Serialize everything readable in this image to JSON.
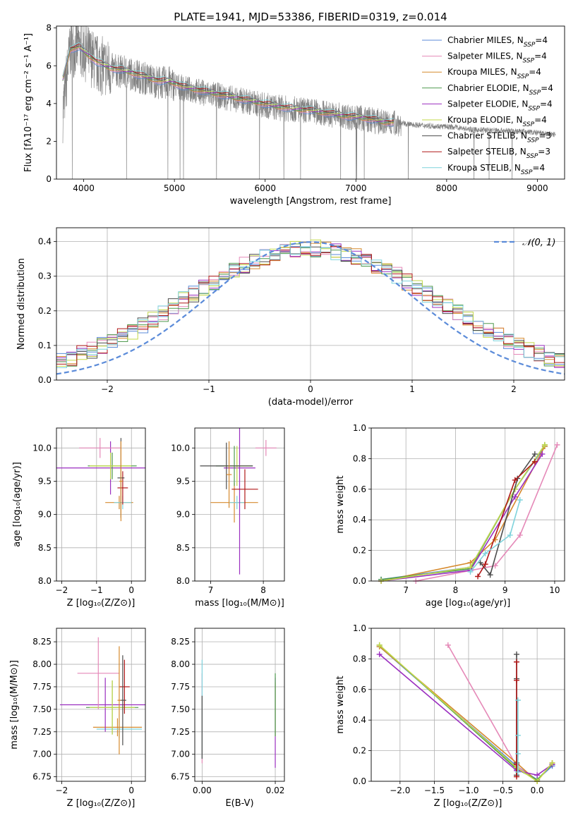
{
  "figure": {
    "title": "PLATE=1941, MJD=53386, FIBERID=0319, z=0.014"
  },
  "legend_entries": [
    {
      "label": "Chabrier MILES, N",
      "sub": "SSP",
      "suffix": "=4",
      "color": "#5b8bd9"
    },
    {
      "label": "Salpeter MILES, N",
      "sub": "SSP",
      "suffix": "=4",
      "color": "#e589b8"
    },
    {
      "label": "Kroupa MILES, N",
      "sub": "SSP",
      "suffix": "=4",
      "color": "#d68a2e"
    },
    {
      "label": "Chabrier ELODIE, N",
      "sub": "SSP",
      "suffix": "=4",
      "color": "#4f9a4f"
    },
    {
      "label": "Salpeter ELODIE, N",
      "sub": "SSP",
      "suffix": "=4",
      "color": "#9b2fc0"
    },
    {
      "label": "Kroupa ELODIE, N",
      "sub": "SSP",
      "suffix": "=4",
      "color": "#c3d94a"
    },
    {
      "label": "Chabrier STELIB, N",
      "sub": "SSP",
      "suffix": "=3",
      "color": "#4d4d4d"
    },
    {
      "label": "Salpeter STELIB, N",
      "sub": "SSP",
      "suffix": "=3",
      "color": "#b01818"
    },
    {
      "label": "Kroupa STELIB, N",
      "sub": "SSP",
      "suffix": "=4",
      "color": "#7fd3dc"
    }
  ],
  "chart_data": [
    {
      "id": "spectrum",
      "type": "line",
      "xlabel": "wavelength [Angstrom, rest frame]",
      "ylabel": "Flux [fλ10⁻¹⁷ erg cm⁻² s⁻¹ A⁻¹]",
      "xlim": [
        3700,
        9300
      ],
      "ylim": [
        0,
        8.1
      ],
      "xticks": [
        4000,
        5000,
        6000,
        7000,
        8000,
        9000
      ],
      "yticks": [
        0,
        2,
        4,
        6,
        8
      ],
      "observed": {
        "color": "#808080",
        "x": [
          3770,
          3850,
          3950,
          4050,
          4150,
          4300,
          4500,
          4700,
          4850,
          4950,
          5100,
          5300,
          5500,
          5700,
          5900,
          6100,
          6300,
          6500,
          6700,
          6900,
          7100,
          7300,
          7500,
          7700,
          7900,
          8100,
          8300,
          8500,
          8700,
          8900,
          9100,
          9200
        ],
        "y": [
          3.5,
          6.9,
          7.0,
          6.6,
          6.1,
          5.8,
          5.6,
          5.3,
          5.1,
          5.1,
          4.8,
          4.6,
          4.4,
          4.2,
          4.0,
          3.8,
          3.7,
          3.6,
          3.45,
          3.3,
          3.2,
          3.0,
          2.95,
          2.85,
          2.8,
          2.75,
          2.6,
          2.6,
          2.55,
          2.5,
          2.4,
          2.35
        ]
      },
      "models": {
        "x": [
          3770,
          3850,
          3950,
          4050,
          4150,
          4300,
          4500,
          4700,
          4850,
          4950,
          5100,
          5300,
          5500,
          5700,
          5900,
          6100,
          6300,
          6500,
          6700,
          6900,
          7100,
          7300,
          7420
        ],
        "y": [
          5.3,
          6.9,
          7.0,
          6.6,
          6.2,
          5.9,
          5.7,
          5.4,
          5.2,
          5.2,
          4.9,
          4.7,
          4.5,
          4.3,
          4.1,
          3.9,
          3.75,
          3.65,
          3.5,
          3.35,
          3.25,
          3.05,
          3.0
        ]
      }
    },
    {
      "id": "residuals",
      "type": "histogram",
      "xlabel": "(data-model)/error",
      "ylabel": "Normed distribution",
      "xlim": [
        -2.5,
        2.5
      ],
      "ylim": [
        0,
        0.44
      ],
      "xticks": [
        -2,
        -1,
        0,
        1,
        2
      ],
      "yticks": [
        0.0,
        0.1,
        0.2,
        0.3,
        0.4
      ],
      "reference_label": "𝒩(0, 1)",
      "reference_color": "#5b8bd9",
      "bin_width": 0.1
    },
    {
      "id": "age-vs-Z",
      "type": "errorbar",
      "xlabel": "Z [log₁₀(Z/Z⊙)]",
      "ylabel": "age  [log₁₀(age/yr)]",
      "xlim": [
        -2.15,
        0.4
      ],
      "ylim": [
        8.0,
        10.3
      ],
      "xticks": [
        -2,
        -1,
        0
      ],
      "yticks": [
        8.0,
        8.5,
        9.0,
        9.5,
        10.0
      ],
      "points": [
        {
          "x": -0.35,
          "xe": 0.4,
          "y": 9.18,
          "ye": 0.1,
          "color": "#d68a2e"
        },
        {
          "x": -0.25,
          "xe": 0.25,
          "y": 9.18,
          "ye": 0.1,
          "color": "#7fd3dc"
        },
        {
          "x": -0.6,
          "xe": 1.6,
          "y": 9.7,
          "ye": 0.4,
          "color": "#9b2fc0"
        },
        {
          "x": -0.55,
          "xe": 0.7,
          "y": 9.73,
          "ye": 0.2,
          "color": "#4f9a4f"
        },
        {
          "x": -0.6,
          "xe": 0.6,
          "y": 9.73,
          "ye": 0.2,
          "color": "#c3d94a"
        },
        {
          "x": -0.25,
          "xe": 0.15,
          "y": 9.4,
          "ye": 0.25,
          "color": "#b01818"
        },
        {
          "x": -0.3,
          "xe": 0.1,
          "y": 9.55,
          "ye": 0.6,
          "color": "#4d4d4d"
        },
        {
          "x": -0.9,
          "xe": 0.6,
          "y": 10.0,
          "ye": 0.15,
          "color": "#e589b8"
        },
        {
          "x": -0.3,
          "xe": 0.05,
          "y": 9.5,
          "ye": 0.6,
          "color": "#d68a2e"
        }
      ]
    },
    {
      "id": "age-vs-mass",
      "type": "errorbar",
      "xlabel": "mass [log₁₀(M/M⊙)]",
      "ylabel": "",
      "xlim": [
        6.7,
        8.4
      ],
      "ylim": [
        8.0,
        10.3
      ],
      "xticks": [
        7,
        8
      ],
      "yticks": [
        8.0,
        8.5,
        9.0,
        9.5,
        10.0
      ],
      "points": [
        {
          "x": 7.45,
          "xe": 0.45,
          "y": 9.18,
          "ye": 0.3,
          "color": "#d68a2e"
        },
        {
          "x": 7.5,
          "xe": 0.15,
          "y": 9.18,
          "ye": 0.1,
          "color": "#7fd3dc"
        },
        {
          "x": 7.55,
          "xe": 0.3,
          "y": 9.7,
          "ye": 1.6,
          "color": "#9b2fc0"
        },
        {
          "x": 7.45,
          "xe": 0.35,
          "y": 9.73,
          "ye": 0.3,
          "color": "#4f9a4f"
        },
        {
          "x": 7.5,
          "xe": 0.25,
          "y": 9.73,
          "ye": 0.3,
          "color": "#c3d94a"
        },
        {
          "x": 7.65,
          "xe": 0.25,
          "y": 9.38,
          "ye": 0.3,
          "color": "#b01818"
        },
        {
          "x": 7.3,
          "xe": 0.5,
          "y": 9.73,
          "ye": 0.35,
          "color": "#4d4d4d"
        },
        {
          "x": 8.05,
          "xe": 0.2,
          "y": 10.0,
          "ye": 0.12,
          "color": "#e589b8"
        },
        {
          "x": 7.35,
          "xe": 0.05,
          "y": 9.6,
          "ye": 0.5,
          "color": "#d68a2e"
        }
      ]
    },
    {
      "id": "weight-vs-age",
      "type": "line",
      "xlabel": "age  [log₁₀(age/yr)]",
      "ylabel": "mass weight",
      "xlim": [
        6.3,
        10.2
      ],
      "ylim": [
        0.0,
        1.0
      ],
      "xticks": [
        7,
        8,
        9,
        10
      ],
      "yticks": [
        0.0,
        0.2,
        0.4,
        0.6,
        0.8,
        1.0
      ],
      "series": [
        {
          "color": "#5b8bd9",
          "x": [
            6.5,
            8.3,
            9.2,
            9.8
          ],
          "y": [
            0.01,
            0.09,
            0.6,
            0.88
          ]
        },
        {
          "color": "#e589b8",
          "x": [
            7.2,
            8.8,
            9.3,
            10.05
          ],
          "y": [
            0.0,
            0.1,
            0.3,
            0.89
          ]
        },
        {
          "color": "#d68a2e",
          "x": [
            6.5,
            8.3,
            8.8,
            9.8
          ],
          "y": [
            0.0,
            0.12,
            0.27,
            0.88
          ]
        },
        {
          "color": "#4f9a4f",
          "x": [
            6.5,
            8.3,
            9.2,
            9.8
          ],
          "y": [
            0.01,
            0.08,
            0.6,
            0.89
          ]
        },
        {
          "color": "#9b2fc0",
          "x": [
            6.5,
            8.3,
            9.2,
            9.75
          ],
          "y": [
            0.0,
            0.07,
            0.55,
            0.83
          ]
        },
        {
          "color": "#c3d94a",
          "x": [
            6.5,
            8.3,
            9.2,
            9.8
          ],
          "y": [
            0.0,
            0.09,
            0.6,
            0.89
          ]
        },
        {
          "color": "#4d4d4d",
          "x": [
            8.5,
            8.7,
            9.25,
            9.6
          ],
          "y": [
            0.12,
            0.04,
            0.67,
            0.83
          ]
        },
        {
          "color": "#b01818",
          "x": [
            8.45,
            8.6,
            9.2,
            9.6
          ],
          "y": [
            0.03,
            0.11,
            0.66,
            0.78
          ]
        },
        {
          "color": "#7fd3dc",
          "x": [
            8.3,
            8.6,
            9.1,
            9.3
          ],
          "y": [
            0.06,
            0.18,
            0.3,
            0.53
          ]
        }
      ]
    },
    {
      "id": "mass-vs-Z",
      "type": "errorbar",
      "xlabel": "Z [log₁₀(Z/Z⊙)]",
      "ylabel": "mass [log₁₀(M/M⊙)]",
      "xlim": [
        -2.15,
        0.4
      ],
      "ylim": [
        6.7,
        8.4
      ],
      "xticks": [
        -2,
        0
      ],
      "yticks": [
        6.75,
        7.0,
        7.25,
        7.5,
        7.75,
        8.0,
        8.25
      ],
      "points": [
        {
          "x": -0.4,
          "xe": 0.7,
          "y": 7.3,
          "ye": 0.1,
          "color": "#d68a2e"
        },
        {
          "x": -0.35,
          "xe": 0.65,
          "y": 7.28,
          "ye": 0.1,
          "color": "#7fd3dc"
        },
        {
          "x": -0.75,
          "xe": 1.3,
          "y": 7.55,
          "ye": 0.3,
          "color": "#9b2fc0"
        },
        {
          "x": -0.55,
          "xe": 0.75,
          "y": 7.52,
          "ye": 0.3,
          "color": "#4f9a4f"
        },
        {
          "x": -0.55,
          "xe": 0.65,
          "y": 7.52,
          "ye": 0.3,
          "color": "#c3d94a"
        },
        {
          "x": -0.2,
          "xe": 0.15,
          "y": 7.75,
          "ye": 0.3,
          "color": "#b01818"
        },
        {
          "x": -0.25,
          "xe": 0.1,
          "y": 7.6,
          "ye": 0.5,
          "color": "#4d4d4d"
        },
        {
          "x": -0.95,
          "xe": 0.6,
          "y": 7.9,
          "ye": 0.4,
          "color": "#e589b8"
        },
        {
          "x": -0.35,
          "xe": 0.05,
          "y": 7.6,
          "ye": 0.6,
          "color": "#d68a2e"
        }
      ]
    },
    {
      "id": "mass-vs-EBV",
      "type": "errorbar",
      "xlabel": "E(B-V)",
      "ylabel": "",
      "xlim": [
        -0.002,
        0.0225
      ],
      "ylim": [
        6.7,
        8.4
      ],
      "xticks": [
        0.0,
        0.02
      ],
      "yticks": [
        6.75,
        7.0,
        7.25,
        7.5,
        7.75,
        8.0,
        8.25
      ],
      "points": [
        {
          "x": 0.0,
          "xe": 0.0,
          "y": 7.3,
          "ye": 0.35,
          "color": "#d68a2e"
        },
        {
          "x": 0.0,
          "xe": 0.0,
          "y": 7.4,
          "ye": 0.5,
          "color": "#e589b8"
        },
        {
          "x": 0.0,
          "xe": 0.0,
          "y": 7.5,
          "ye": 0.55,
          "color": "#7fd3dc"
        },
        {
          "x": 0.0,
          "xe": 0.0,
          "y": 7.3,
          "ye": 0.35,
          "color": "#4d4d4d"
        },
        {
          "x": 0.02,
          "xe": 0.0,
          "y": 7.35,
          "ye": 0.5,
          "color": "#9b2fc0"
        },
        {
          "x": 0.02,
          "xe": 0.0,
          "y": 7.5,
          "ye": 0.3,
          "color": "#c3d94a"
        },
        {
          "x": 0.02,
          "xe": 0.0,
          "y": 7.55,
          "ye": 0.35,
          "color": "#4f9a4f"
        }
      ]
    },
    {
      "id": "weight-vs-Z",
      "type": "line",
      "xlabel": "Z [log₁₀(Z/Z⊙)]",
      "ylabel": "mass weight",
      "xlim": [
        -2.42,
        0.4
      ],
      "ylim": [
        0.0,
        1.0
      ],
      "xticks": [
        -2.0,
        -1.5,
        -1.0,
        -0.5,
        0.0
      ],
      "yticks": [
        0.0,
        0.2,
        0.4,
        0.6,
        0.8,
        1.0
      ],
      "series": [
        {
          "color": "#5b8bd9",
          "x": [
            -2.3,
            -0.3,
            0.0,
            0.22
          ],
          "y": [
            0.88,
            0.1,
            0.01,
            0.1
          ]
        },
        {
          "color": "#e589b8",
          "x": [
            -1.3,
            -0.3,
            0.0,
            0.22
          ],
          "y": [
            0.89,
            0.1,
            0.0,
            0.12
          ]
        },
        {
          "color": "#d68a2e",
          "x": [
            -2.3,
            -0.3,
            0.0,
            0.22
          ],
          "y": [
            0.88,
            0.12,
            0.0,
            0.12
          ]
        },
        {
          "color": "#4f9a4f",
          "x": [
            -2.3,
            -0.3,
            0.0,
            0.22
          ],
          "y": [
            0.89,
            0.08,
            0.01,
            0.11
          ]
        },
        {
          "color": "#9b2fc0",
          "x": [
            -2.3,
            -0.3,
            0.0,
            0.22
          ],
          "y": [
            0.83,
            0.07,
            0.04,
            0.11
          ]
        },
        {
          "color": "#c3d94a",
          "x": [
            -2.3,
            -0.3,
            0.0,
            0.22
          ],
          "y": [
            0.89,
            0.09,
            0.0,
            0.12
          ]
        },
        {
          "color": "#4d4d4d",
          "x": [
            -0.3,
            -0.3,
            -0.3,
            -0.3
          ],
          "y": [
            0.04,
            0.12,
            0.67,
            0.83
          ]
        },
        {
          "color": "#b01818",
          "x": [
            -0.3,
            -0.3,
            -0.3,
            -0.3
          ],
          "y": [
            0.03,
            0.11,
            0.66,
            0.78
          ]
        },
        {
          "color": "#7fd3dc",
          "x": [
            -0.28,
            -0.28,
            -0.28,
            -0.28
          ],
          "y": [
            0.06,
            0.18,
            0.3,
            0.53
          ]
        }
      ]
    }
  ]
}
